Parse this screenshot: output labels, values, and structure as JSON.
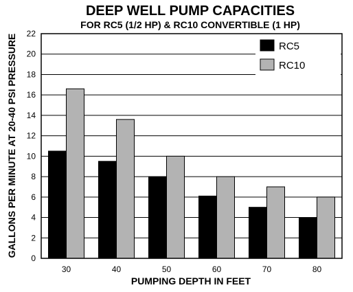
{
  "chart_data": {
    "type": "bar",
    "title": "DEEP WELL PUMP CAPACITIES",
    "subtitle": "FOR RC5 (1/2 HP) & RC10 CONVERTIBLE (1 HP)",
    "xlabel": "PUMPING DEPTH IN FEET",
    "ylabel": "GALLONS PER MINUTE AT 20-40 PSI PRESSURE",
    "categories": [
      "30",
      "40",
      "50",
      "60",
      "70",
      "80"
    ],
    "ylim": [
      0,
      22
    ],
    "yticks": [
      "0",
      "2",
      "4",
      "6",
      "8",
      "10",
      "12",
      "14",
      "16",
      "18",
      "20",
      "22"
    ],
    "grid": true,
    "legend_position": "top-right",
    "series": [
      {
        "name": "RC5",
        "color": "#000000",
        "values": [
          10.5,
          9.5,
          8.0,
          6.1,
          5.0,
          4.0
        ]
      },
      {
        "name": "RC10",
        "color": "#b3b3b3",
        "values": [
          16.6,
          13.6,
          10.0,
          8.0,
          7.0,
          6.0
        ]
      }
    ]
  }
}
